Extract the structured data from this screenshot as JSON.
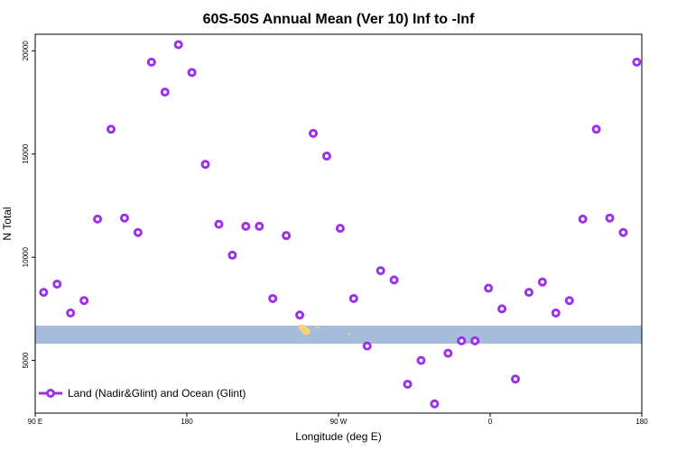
{
  "chart_data": {
    "type": "scatter",
    "title": "60S-50S Annual Mean (Ver 10)   Inf to -Inf",
    "xlabel": "Longitude (deg E)",
    "ylabel": "N Total",
    "xlim": [
      90,
      450
    ],
    "ylim": [
      2450,
      20800
    ],
    "x_ticks": [
      {
        "value": 90,
        "label": "90 E"
      },
      {
        "value": 180,
        "label": "180"
      },
      {
        "value": 270,
        "label": "90 W"
      },
      {
        "value": 360,
        "label": "0"
      },
      {
        "value": 450,
        "label": "180"
      }
    ],
    "y_ticks": [
      {
        "value": 5000,
        "label": "5000"
      },
      {
        "value": 10000,
        "label": "10000"
      },
      {
        "value": 15000,
        "label": "15000"
      },
      {
        "value": 20000,
        "label": "20000"
      }
    ],
    "series": [
      {
        "name": "Land (Nadir&Glint) and Ocean (Glint)",
        "color": "#9b30e8",
        "x": [
          95,
          103,
          111,
          119,
          127,
          135,
          143,
          151,
          159,
          167,
          175,
          183,
          191,
          199,
          207,
          215,
          223,
          231,
          239,
          247,
          255,
          263,
          271,
          279,
          287,
          295,
          303,
          311,
          319,
          327,
          335,
          343,
          351,
          359,
          367,
          375,
          383,
          391,
          399,
          407,
          415,
          423,
          431,
          439,
          447
        ],
        "y": [
          8300,
          8700,
          7300,
          7900,
          11850,
          16200,
          11900,
          11200,
          19450,
          18000,
          20300,
          18950,
          14500,
          11600,
          10100,
          11500,
          11500,
          8000,
          11050,
          7200,
          16000,
          14900,
          11400,
          8000,
          5700,
          9350,
          8900,
          3850,
          5000,
          2900,
          5350,
          5950,
          5950,
          8500,
          7500,
          4100,
          8300,
          8800,
          7300,
          7900,
          11850,
          16200,
          11900,
          11200,
          19450
        ]
      }
    ],
    "legend": {
      "location": "bottom-left",
      "label": "Land (Nadir&Glint) and Ocean (Glint)"
    },
    "grid": false
  },
  "colors": {
    "marker": "#9b30e8",
    "band": "#a6bcdb",
    "land_patch": "#f5d27a"
  }
}
